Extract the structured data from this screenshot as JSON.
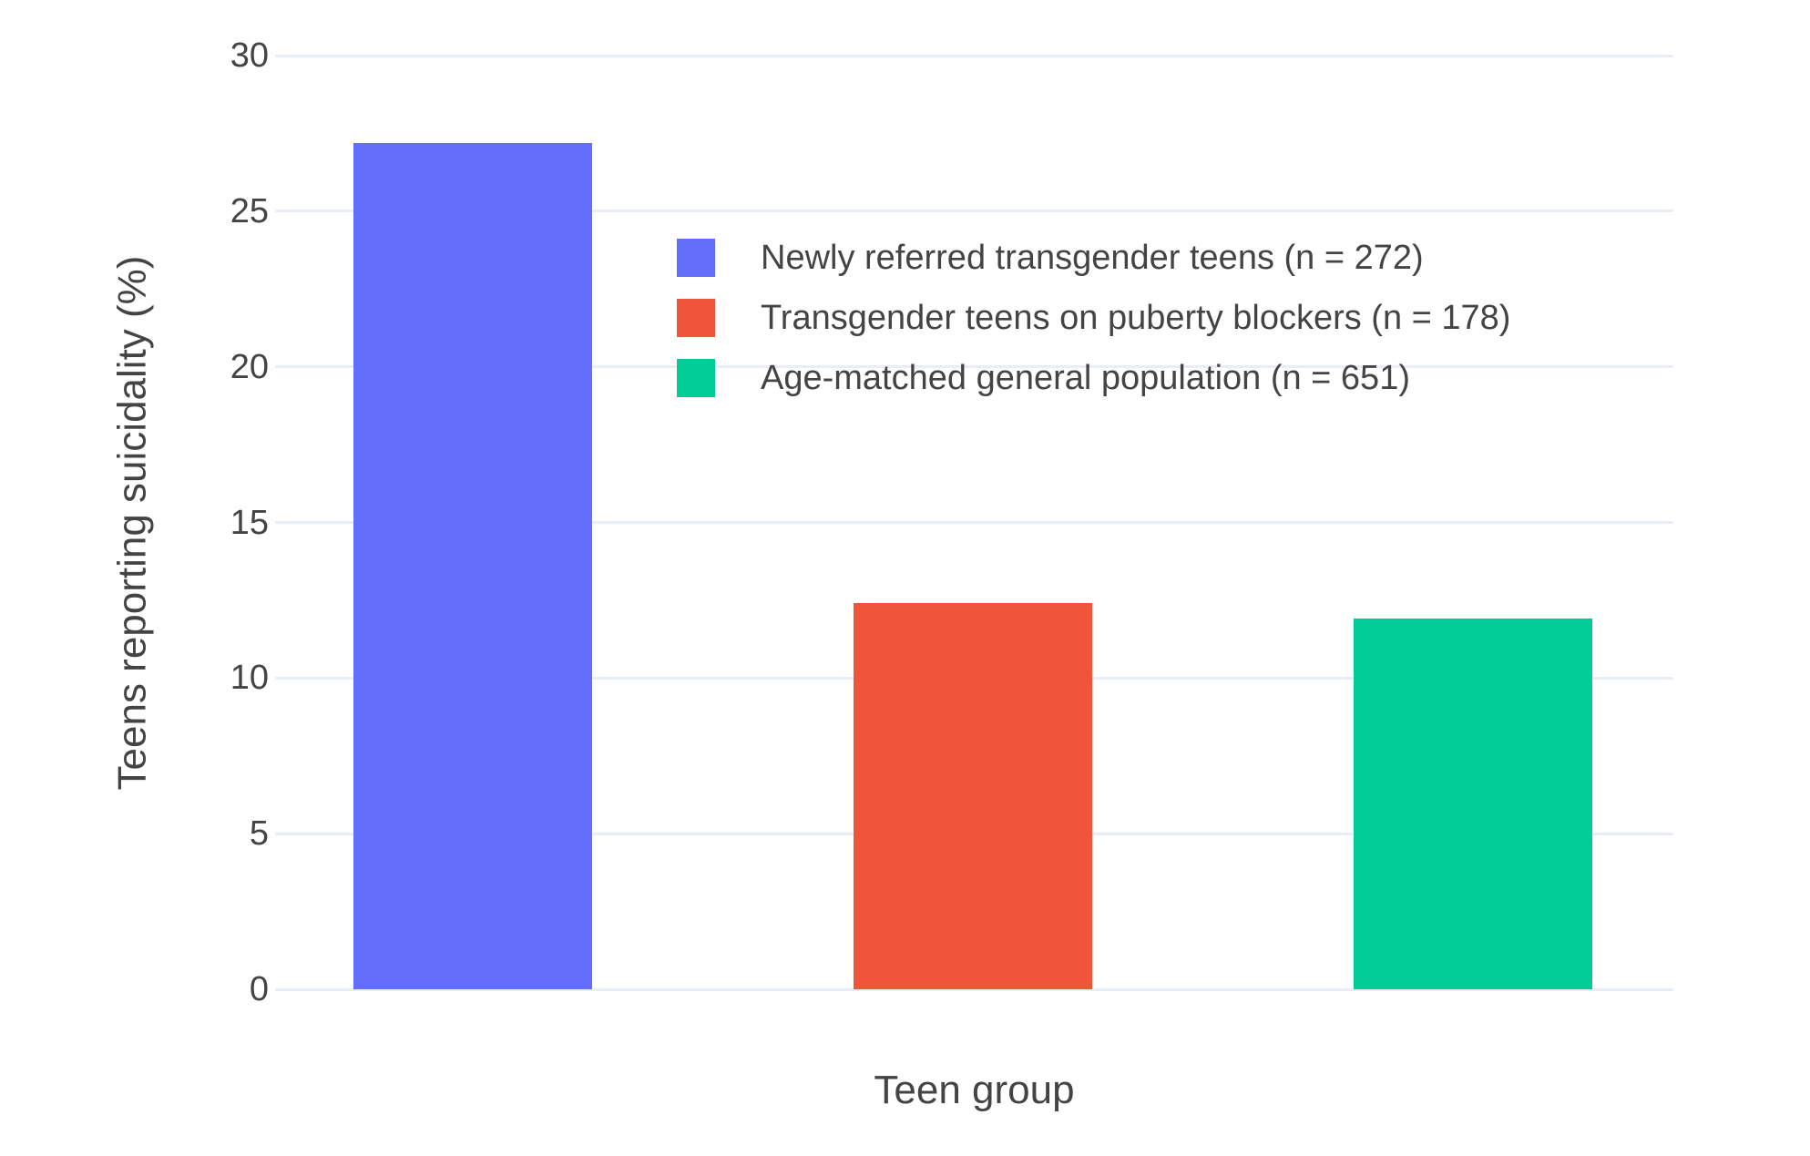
{
  "chart_data": {
    "type": "bar",
    "title": "",
    "xlabel": "Teen group",
    "ylabel": "Teens reporting suicidality (%)",
    "ylim": [
      0,
      30
    ],
    "yticks": [
      0,
      5,
      10,
      15,
      20,
      25,
      30
    ],
    "grid": true,
    "legend_position": "inside-top-left",
    "categories": [
      "Newly referred transgender teens (n = 272)",
      "Transgender teens on puberty blockers (n = 178)",
      "Age-matched general population (n = 651)"
    ],
    "values": [
      27.2,
      12.4,
      11.9
    ],
    "colors": [
      "#636EFA",
      "#EF553B",
      "#00CC96"
    ]
  },
  "style": {
    "grid_color": "#E9EDF5",
    "text_color": "#444444",
    "background_color": "#FFFFFF"
  }
}
